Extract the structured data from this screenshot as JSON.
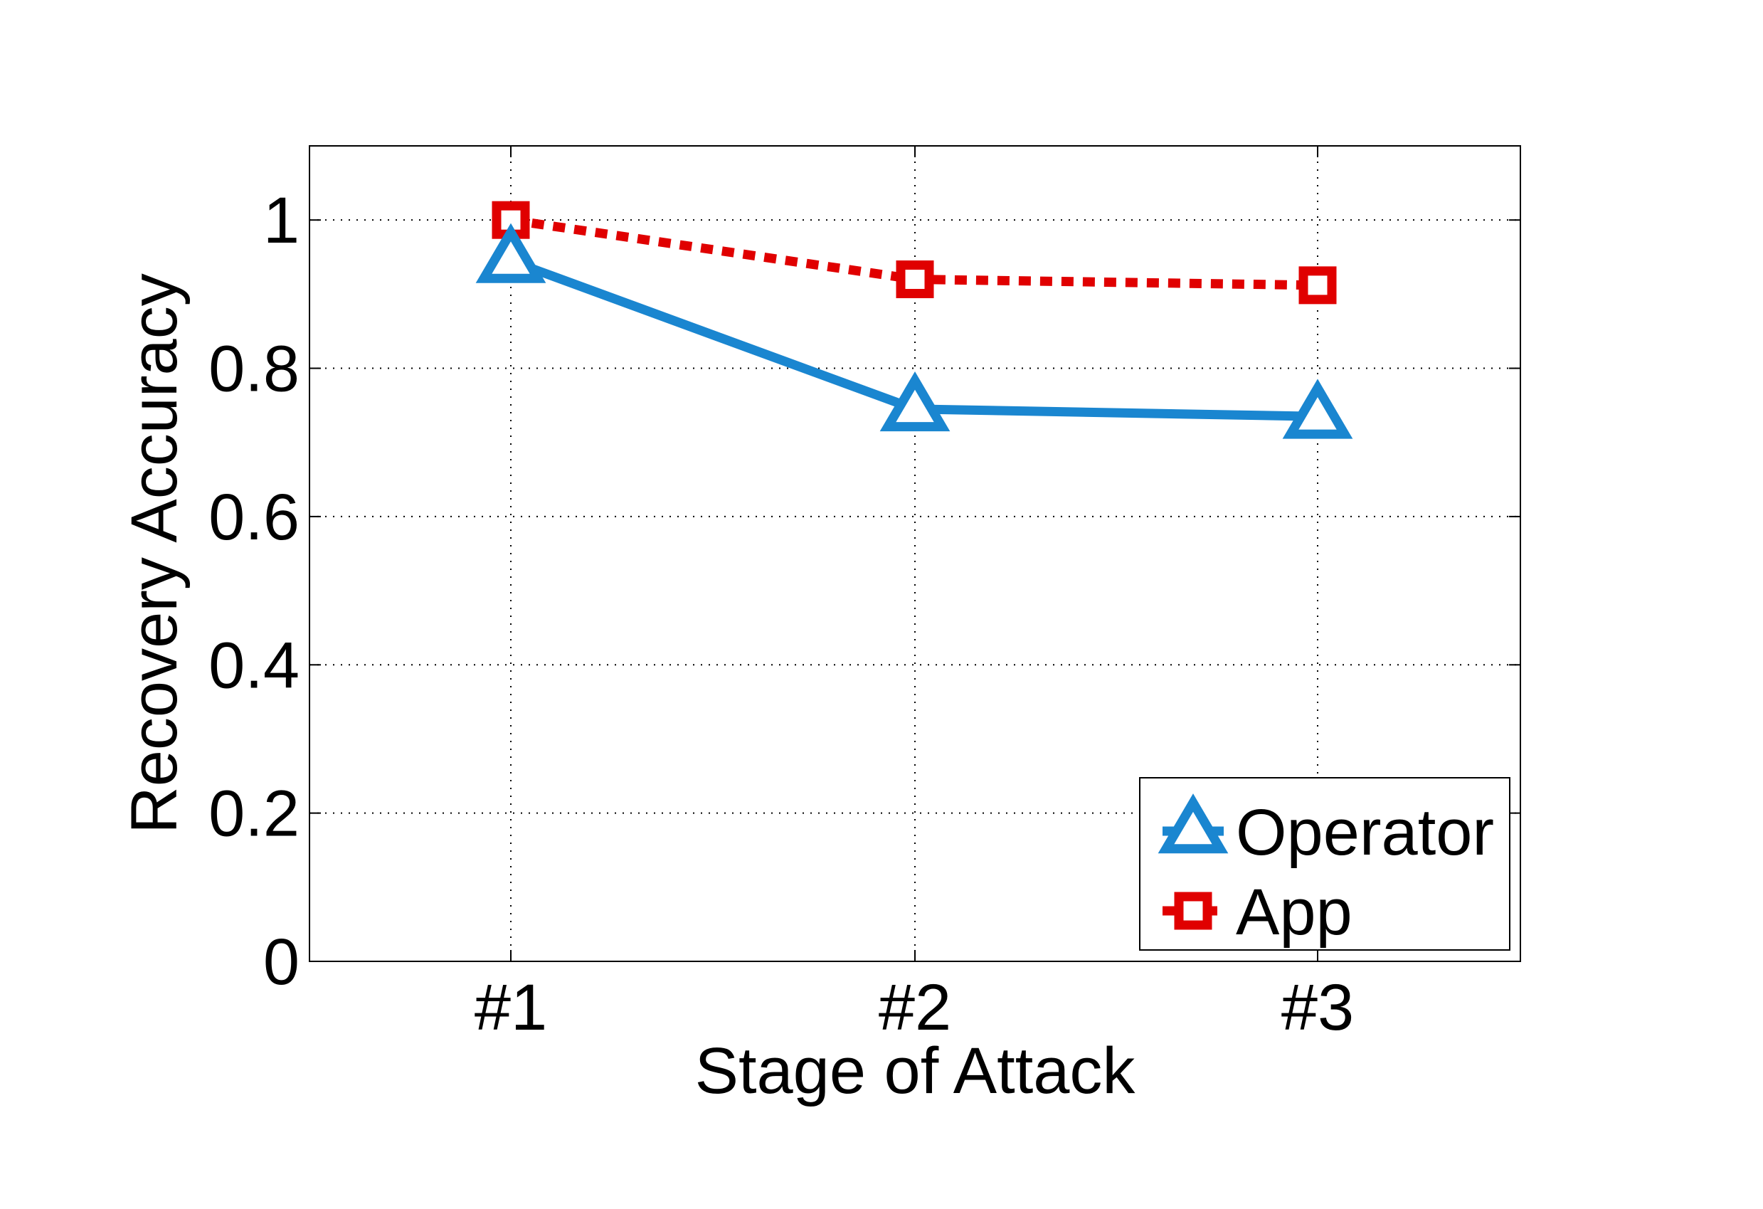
{
  "chart_data": {
    "type": "line",
    "title": "",
    "xlabel": "Stage of Attack",
    "ylabel": "Recovery Accuracy",
    "categories": [
      "#1",
      "#2",
      "#3"
    ],
    "ylim": [
      0,
      1.1
    ],
    "yticks": [
      0,
      0.2,
      0.4,
      0.6,
      0.8,
      1
    ],
    "ytick_labels": [
      "0",
      "0.2",
      "0.4",
      "0.6",
      "0.8",
      "1"
    ],
    "grid": true,
    "legend_position": "bottom-right",
    "series": [
      {
        "name": "Operator",
        "values": [
          0.945,
          0.745,
          0.735
        ],
        "color": "#1a86d0",
        "line_style": "solid",
        "marker": "triangle"
      },
      {
        "name": "App",
        "values": [
          1.0,
          0.92,
          0.912
        ],
        "color": "#e00000",
        "line_style": "dotted",
        "marker": "square"
      }
    ]
  }
}
